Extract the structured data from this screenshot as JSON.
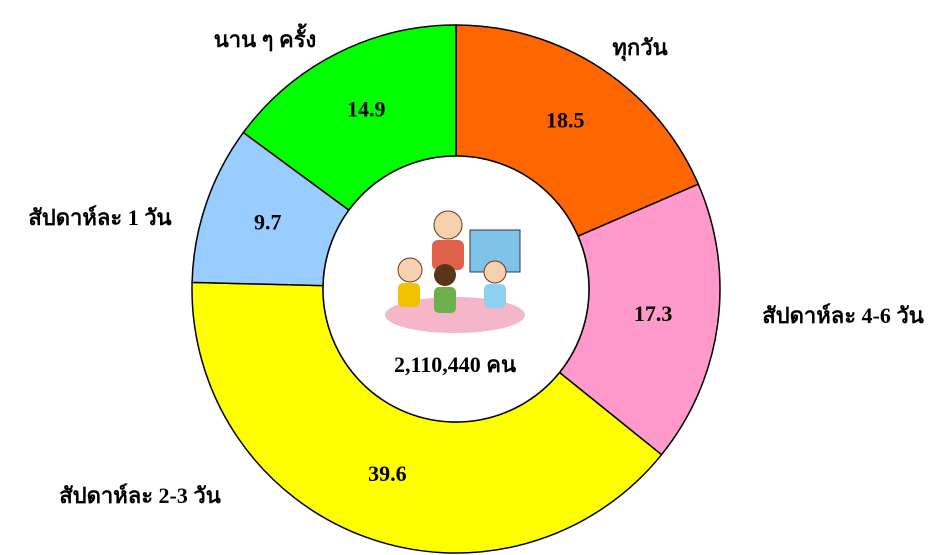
{
  "chart_data": {
    "type": "donut",
    "categories": [
      "ทุกวัน",
      "สัปดาห์ละ 4-6 วัน",
      "สัปดาห์ละ 2-3 วัน",
      "สัปดาห์ละ 1 วัน",
      "นาน ๆ ครั้ง"
    ],
    "values": [
      18.5,
      17.3,
      39.6,
      9.7,
      14.9
    ],
    "colors": [
      "#ff6600",
      "#ff99cc",
      "#ffff00",
      "#99ccff",
      "#00ff00"
    ],
    "center_label": "2,110,440 คน"
  }
}
